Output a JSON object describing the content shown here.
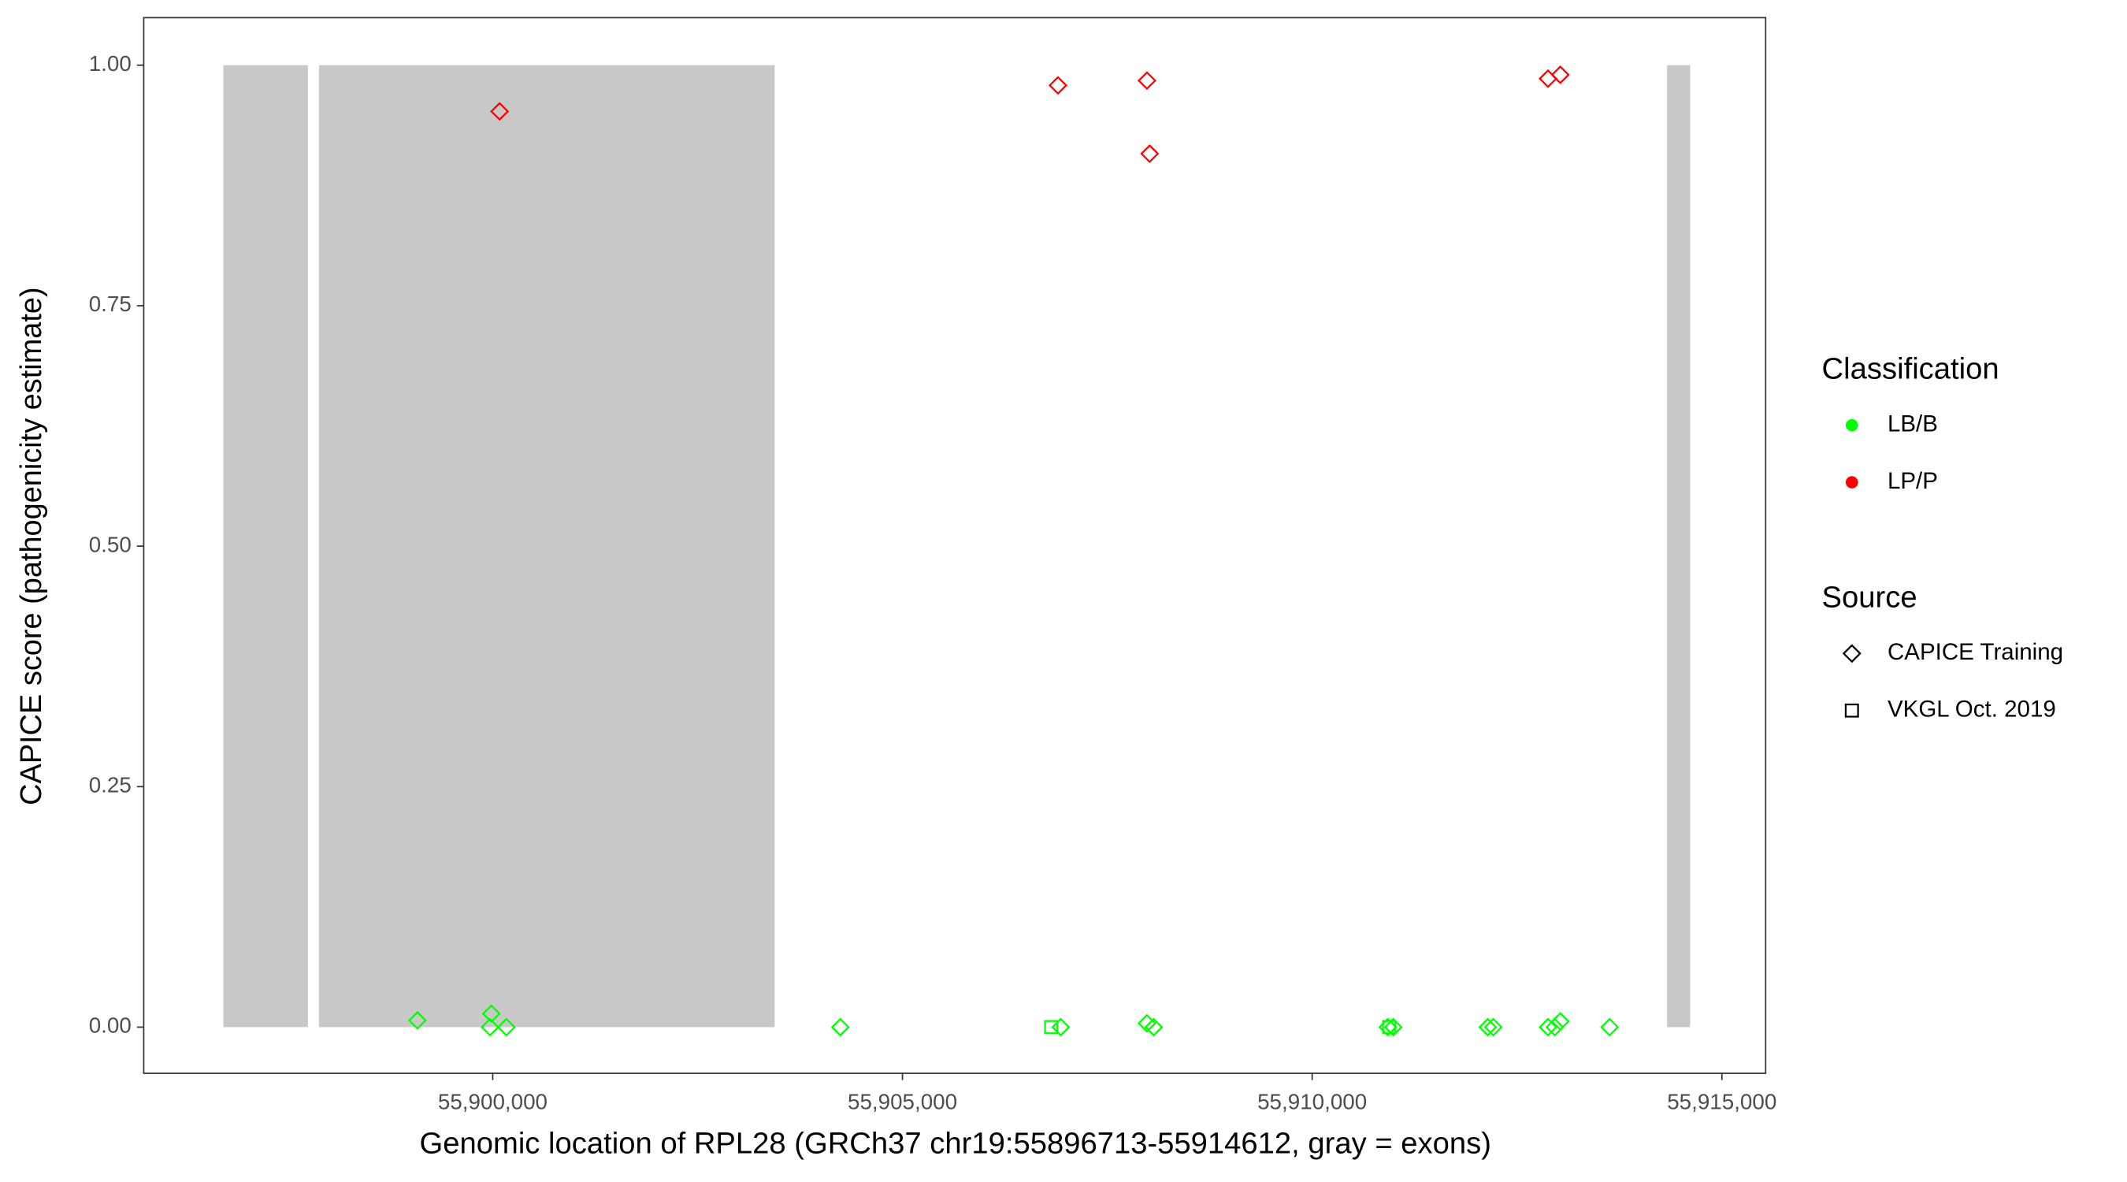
{
  "chart_data": {
    "type": "scatter",
    "x_label": "Genomic location of RPL28 (GRCh37 chr19:55896713-55914612, gray = exons)",
    "y_label": "CAPICE score (pathogenicity estimate)",
    "xlim": [
      55895741,
      55915534
    ],
    "ylim": [
      -0.048,
      1.0494
    ],
    "xticks": [
      {
        "value": 55900000,
        "label": "55,900,000"
      },
      {
        "value": 55905000,
        "label": "55,905,000"
      },
      {
        "value": 55910000,
        "label": "55,910,000"
      },
      {
        "value": 55915000,
        "label": "55,915,000"
      }
    ],
    "yticks": [
      {
        "value": 0,
        "label": "0.00"
      },
      {
        "value": 0.25,
        "label": "0.25"
      },
      {
        "value": 0.5,
        "label": "0.50"
      },
      {
        "value": 0.75,
        "label": "0.75"
      },
      {
        "value": 1,
        "label": "1.00"
      }
    ],
    "exons": [
      [
        55896713,
        55897745
      ],
      [
        55897879,
        55903441
      ],
      [
        55914331,
        55914612
      ]
    ],
    "exon_color": "#c8c8c8",
    "legend": {
      "classification": {
        "title": "Classification",
        "items": [
          {
            "name": "LB/B",
            "color": "#00ff00"
          },
          {
            "name": "LP/P",
            "color": "#ff0000"
          }
        ]
      },
      "source": {
        "title": "Source",
        "items": [
          {
            "name": "CAPICE Training",
            "shape": "diamond"
          },
          {
            "name": "VKGL Oct. 2019",
            "shape": "square"
          }
        ]
      }
    },
    "series": [
      {
        "classification": "LP/P",
        "source": "CAPICE Training",
        "x": [
          55900084,
          55906898,
          55907984,
          55908017,
          55912878,
          55913028
        ],
        "y": [
          0.952,
          0.979,
          0.984,
          0.908,
          0.986,
          0.99
        ]
      },
      {
        "classification": "LB/B",
        "source": "CAPICE Training",
        "x": [
          55899081,
          55899983,
          55899967,
          55900167,
          55904242,
          55906932,
          55907984,
          55908067,
          55910923,
          55910990,
          55912143,
          55912210,
          55912878,
          55912961,
          55913028,
          55913630
        ],
        "y": [
          0.007,
          0.014,
          0,
          0,
          0,
          0,
          0.004,
          0,
          0,
          0,
          0,
          0,
          0,
          0,
          0.006,
          0
        ]
      },
      {
        "classification": "LB/B",
        "source": "VKGL Oct. 2019",
        "x": [
          55906815,
          55910940
        ],
        "y": [
          0,
          0
        ]
      }
    ]
  }
}
